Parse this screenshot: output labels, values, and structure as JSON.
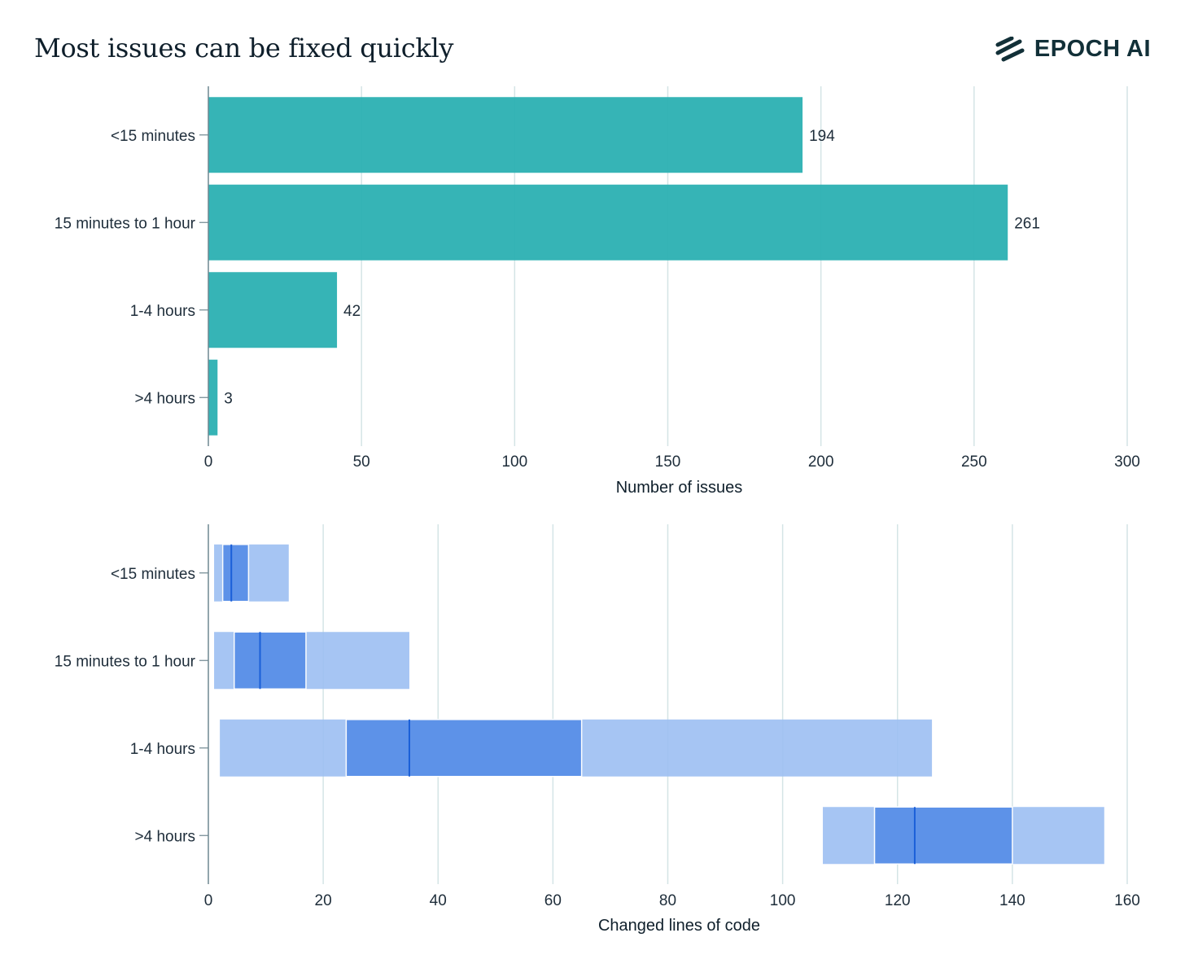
{
  "title": "Most issues can be fixed quickly",
  "brand": {
    "name": "EPOCH AI",
    "icon": "epoch-logo-icon"
  },
  "colors": {
    "bar": "#2bb0b2",
    "box_light": "#9cbff2",
    "box_dark": "#5a90e8",
    "median": "#1a5fd8",
    "grid": "#d4e4e6",
    "axis": "#6e8790",
    "text": "#1e2d3a"
  },
  "chart_data": [
    {
      "type": "bar",
      "orientation": "horizontal",
      "categories": [
        "<15 minutes",
        "15 minutes to 1 hour",
        "1-4 hours",
        ">4 hours"
      ],
      "values": [
        194,
        261,
        42,
        3
      ],
      "data_labels": [
        "194",
        "261",
        "42",
        "3"
      ],
      "xlabel": "Number of issues",
      "xlim": [
        0,
        300
      ],
      "xticks": [
        0,
        50,
        100,
        150,
        200,
        250,
        300
      ],
      "grid": "vertical"
    },
    {
      "type": "box",
      "orientation": "horizontal",
      "categories": [
        "<15 minutes",
        "15 minutes to 1 hour",
        "1-4 hours",
        ">4 hours"
      ],
      "series": [
        {
          "low": 1,
          "q1": 2.5,
          "median": 4,
          "q3": 7,
          "high": 14
        },
        {
          "low": 1,
          "q1": 4.5,
          "median": 9,
          "q3": 17,
          "high": 35
        },
        {
          "low": 2,
          "q1": 24,
          "median": 35,
          "q3": 65,
          "high": 126
        },
        {
          "low": 107,
          "q1": 116,
          "median": 123,
          "q3": 140,
          "high": 156
        }
      ],
      "xlabel": "Changed lines of code",
      "xlim": [
        0,
        160
      ],
      "xticks": [
        0,
        20,
        40,
        60,
        80,
        100,
        120,
        140,
        160
      ],
      "grid": "vertical"
    }
  ]
}
